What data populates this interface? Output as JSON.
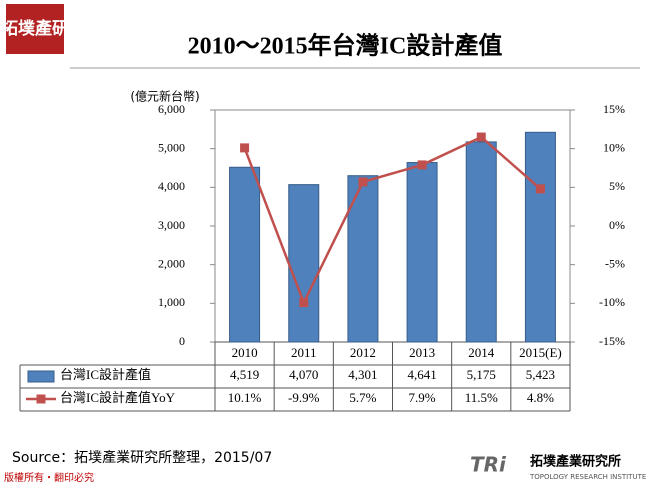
{
  "logo": "拓墣產研",
  "chart_data": {
    "type": "bar",
    "title": "2010～2015年台灣IC設計產值",
    "ylabel": "(億元新台幣)",
    "categories": [
      "2010",
      "2011",
      "2012",
      "2013",
      "2014",
      "2015(E)"
    ],
    "series": [
      {
        "name": "台灣IC設計產值",
        "type": "bar",
        "color": "#4f81bd",
        "values": [
          4519,
          4070,
          4301,
          4641,
          5175,
          5423
        ],
        "value_labels": [
          "4,519",
          "4,070",
          "4,301",
          "4,641",
          "5,175",
          "5,423"
        ]
      },
      {
        "name": "台灣IC設計產值YoY",
        "type": "line",
        "axis": "y2",
        "color": "#c0504d",
        "values": [
          10.1,
          -9.9,
          5.7,
          7.9,
          11.5,
          4.8
        ],
        "value_labels": [
          "10.1%",
          "-9.9%",
          "5.7%",
          "7.9%",
          "11.5%",
          "4.8%"
        ]
      }
    ],
    "ylim": [
      0,
      6000
    ],
    "yticks": [
      0,
      {
        "value": 1000,
        "label": "1,000"
      },
      {
        "value": 2000,
        "label": "2,000"
      },
      {
        "value": 3000,
        "label": "3,000"
      },
      {
        "value": 4000,
        "label": "4,000"
      },
      {
        "value": 5000,
        "label": "5,000"
      },
      {
        "value": 6000,
        "label": "6,000"
      }
    ],
    "y2lim": [
      -15,
      15
    ],
    "y2ticks": [
      {
        "value": -15,
        "label": "-15%"
      },
      {
        "value": -10,
        "label": "-10%"
      },
      {
        "value": -5,
        "label": "-5%"
      },
      {
        "value": 0,
        "label": "0%"
      },
      {
        "value": 5,
        "label": "5%"
      },
      {
        "value": 10,
        "label": "10%"
      },
      {
        "value": 15,
        "label": "15%"
      }
    ]
  },
  "source": "Source：拓墣產業研究所整理，2015/07",
  "copyright": "版權所有・翻印必究",
  "footer_logo": {
    "mark": "TRi",
    "name": "拓墣產業研究所",
    "subtitle": "TOPOLOGY RESEARCH INSTITUTE"
  }
}
